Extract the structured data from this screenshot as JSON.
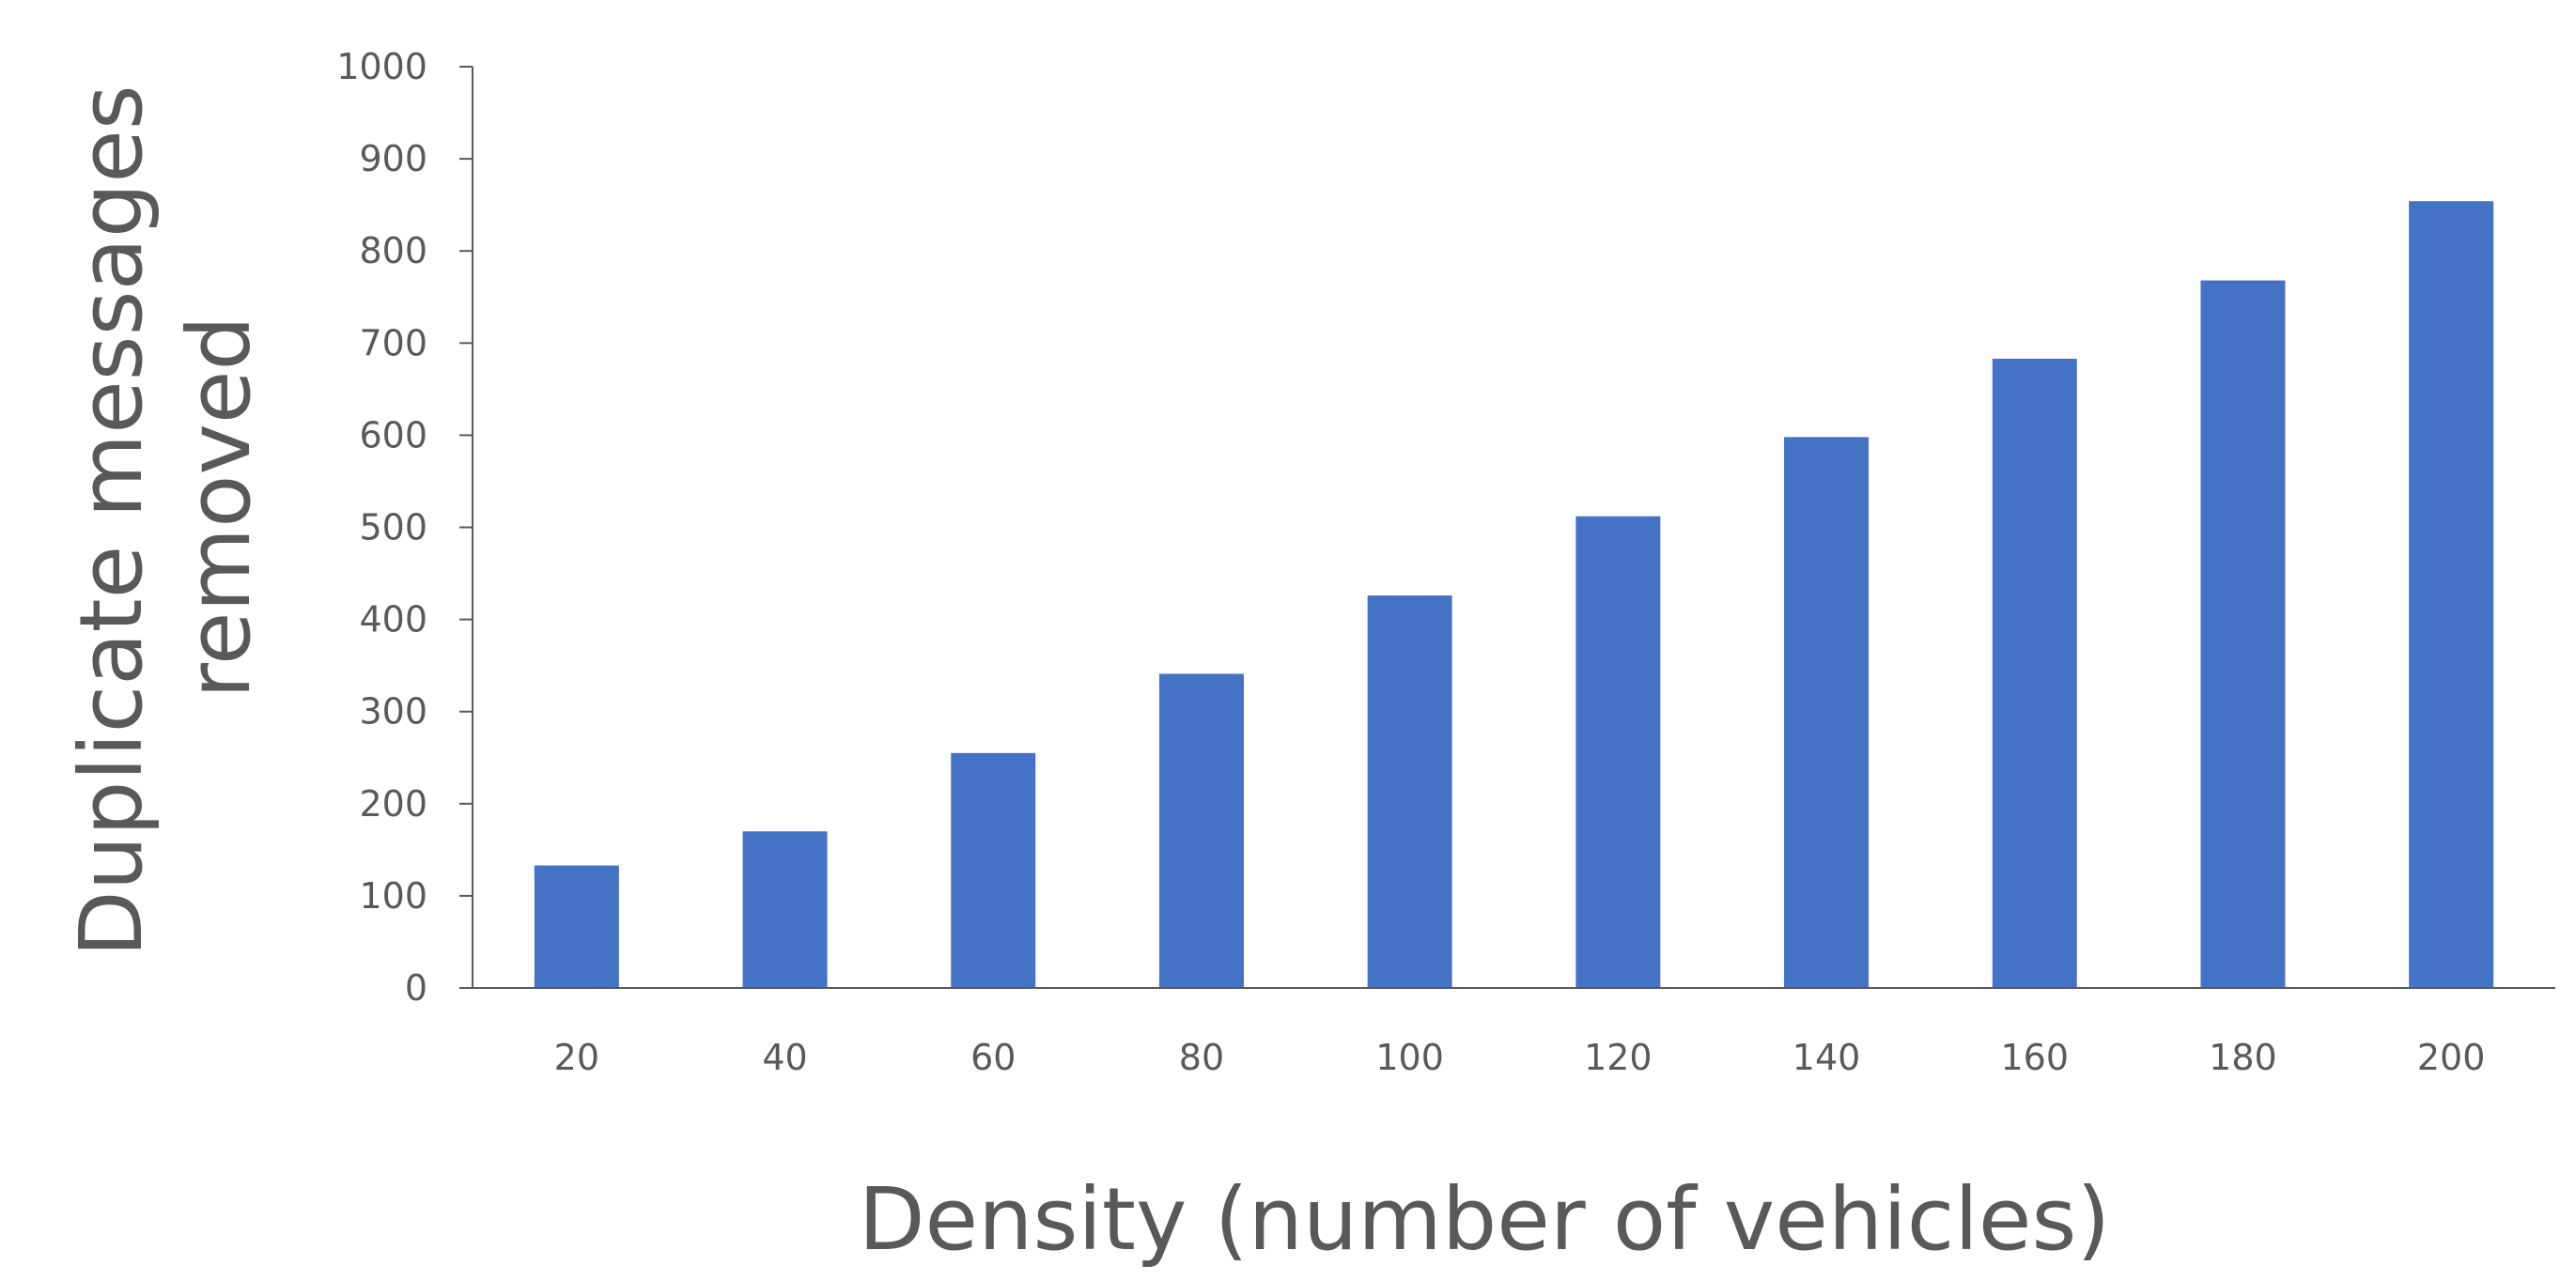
{
  "chart_data": {
    "type": "bar",
    "title": "",
    "xlabel": "Density (number of vehicles)",
    "ylabel_lines": [
      "Duplicate messages",
      "removed"
    ],
    "categories": [
      "20",
      "40",
      "60",
      "80",
      "100",
      "120",
      "140",
      "160",
      "180",
      "200"
    ],
    "values": [
      133,
      170,
      255,
      341,
      426,
      512,
      598,
      683,
      768,
      854
    ],
    "ylim": [
      0,
      1000
    ],
    "yticks": [
      0,
      100,
      200,
      300,
      400,
      500,
      600,
      700,
      800,
      900,
      1000
    ],
    "grid": false,
    "legend": "none",
    "bar_color": "#4472C4",
    "axis_color": "#595959",
    "text_color": "#595959"
  }
}
